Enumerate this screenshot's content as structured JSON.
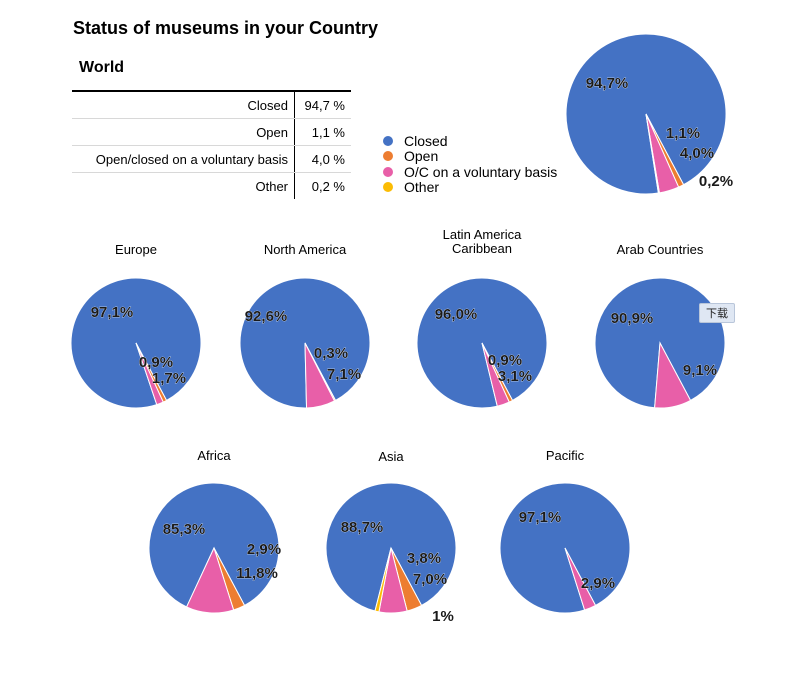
{
  "page_title": "Status of museums in your Country",
  "world_heading": "World",
  "world_table": [
    {
      "label": "Closed",
      "value": "94,7 %"
    },
    {
      "label": "Open",
      "value": "1,1 %"
    },
    {
      "label": "Open/closed on a voluntary basis",
      "value": "4,0 %"
    },
    {
      "label": "Other",
      "value": "0,2 %"
    }
  ],
  "legend": [
    {
      "name": "Closed",
      "color": "#4472c4"
    },
    {
      "name": "Open",
      "color": "#ed7d31"
    },
    {
      "name": "O/C on a voluntary basis",
      "color": "#e85fa8"
    },
    {
      "name": "Other",
      "color": "#fbbc04"
    }
  ],
  "download_label": "下载",
  "chart_data": [
    {
      "type": "pie",
      "title": "",
      "slices": [
        {
          "category": "Closed",
          "value": 94.7,
          "label": "94,7%"
        },
        {
          "category": "Open",
          "value": 1.1,
          "label": "1,1%"
        },
        {
          "category": "O/C on a voluntary basis",
          "value": 4.0,
          "label": "4,0%"
        },
        {
          "category": "Other",
          "value": 0.2,
          "label": "0,2%"
        }
      ]
    },
    {
      "type": "pie",
      "title": "Europe",
      "slices": [
        {
          "category": "Closed",
          "value": 97.1,
          "label": "97,1%"
        },
        {
          "category": "Open",
          "value": 0.9,
          "label": "0,9%"
        },
        {
          "category": "O/C on a voluntary basis",
          "value": 1.7,
          "label": "1,7%"
        }
      ]
    },
    {
      "type": "pie",
      "title": "North America",
      "slices": [
        {
          "category": "Closed",
          "value": 92.6,
          "label": "92,6%"
        },
        {
          "category": "Open",
          "value": 0.3,
          "label": "0,3%"
        },
        {
          "category": "O/C on a voluntary basis",
          "value": 7.1,
          "label": "7,1%"
        }
      ]
    },
    {
      "type": "pie",
      "title": "Latin America\nCaribbean",
      "slices": [
        {
          "category": "Closed",
          "value": 96.0,
          "label": "96,0%"
        },
        {
          "category": "Open",
          "value": 0.9,
          "label": "0,9%"
        },
        {
          "category": "O/C on a voluntary basis",
          "value": 3.1,
          "label": "3,1%"
        }
      ]
    },
    {
      "type": "pie",
      "title": "Arab Countries",
      "slices": [
        {
          "category": "Closed",
          "value": 90.9,
          "label": "90,9%"
        },
        {
          "category": "O/C on a voluntary basis",
          "value": 9.1,
          "label": "9,1%"
        }
      ]
    },
    {
      "type": "pie",
      "title": "Africa",
      "slices": [
        {
          "category": "Closed",
          "value": 85.3,
          "label": "85,3%"
        },
        {
          "category": "Open",
          "value": 2.9,
          "label": "2,9%"
        },
        {
          "category": "O/C on a voluntary basis",
          "value": 11.8,
          "label": "11,8%"
        }
      ]
    },
    {
      "type": "pie",
      "title": "Asia",
      "slices": [
        {
          "category": "Closed",
          "value": 88.7,
          "label": "88,7%"
        },
        {
          "category": "Open",
          "value": 3.8,
          "label": "3,8%"
        },
        {
          "category": "O/C on a voluntary basis",
          "value": 7.0,
          "label": "7,0%"
        },
        {
          "category": "Other",
          "value": 1,
          "label": "1%"
        }
      ]
    },
    {
      "type": "pie",
      "title": "Pacific",
      "slices": [
        {
          "category": "Closed",
          "value": 97.1,
          "label": "97,1%"
        },
        {
          "category": "O/C on a voluntary basis",
          "value": 2.9,
          "label": "2,9%"
        }
      ]
    }
  ]
}
